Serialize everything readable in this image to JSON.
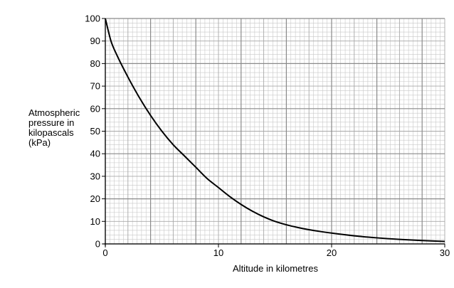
{
  "chart_data": {
    "type": "line",
    "xlabel": "Altitude in kilometres",
    "ylabel_lines": [
      "Atmospheric",
      "pressure in",
      "kilopascals",
      "(kPa)"
    ],
    "xlim": [
      0,
      30
    ],
    "ylim": [
      0,
      100
    ],
    "x_ticks": [
      "0",
      "10",
      "20",
      "30"
    ],
    "y_ticks": [
      "0",
      "10",
      "20",
      "30",
      "40",
      "50",
      "60",
      "70",
      "80",
      "90",
      "100"
    ],
    "grid": true,
    "series": [
      {
        "x": [
          0,
          0.5,
          1,
          2,
          3,
          4,
          5,
          6,
          7,
          8,
          9,
          10,
          11,
          12,
          13,
          14,
          15,
          16,
          17,
          18,
          19,
          20,
          22,
          24,
          26,
          28,
          30
        ],
        "y": [
          100,
          90,
          84,
          74,
          65,
          57,
          50,
          44,
          39,
          34,
          29,
          25,
          21,
          17.5,
          14.5,
          12,
          10,
          8.5,
          7.3,
          6.3,
          5.5,
          4.8,
          3.6,
          2.7,
          2.0,
          1.5,
          1.1
        ],
        "color": "#000000"
      }
    ]
  }
}
